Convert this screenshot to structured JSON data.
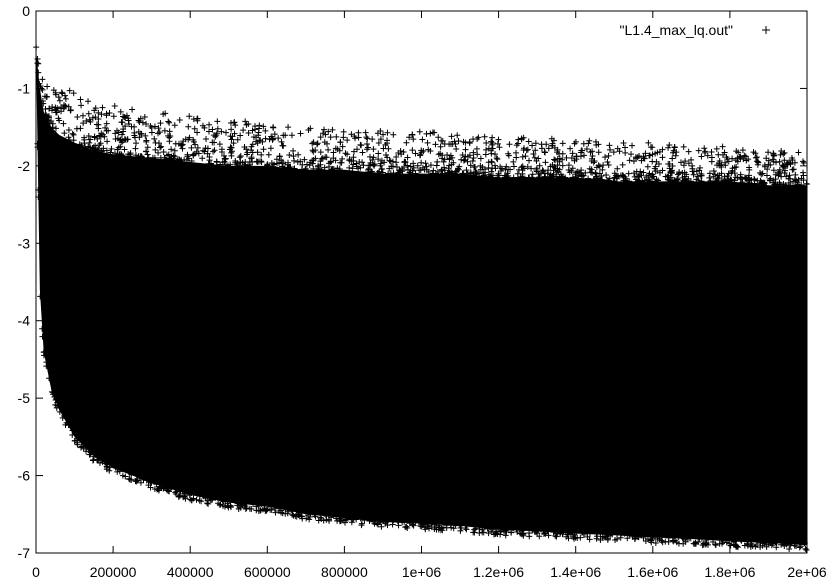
{
  "chart_data": {
    "type": "scatter",
    "title": "",
    "xlabel": "",
    "ylabel": "",
    "xlim": [
      0,
      2000000
    ],
    "ylim": [
      -7,
      0
    ],
    "x_ticks": [
      0,
      200000,
      400000,
      600000,
      800000,
      1000000,
      1200000,
      1400000,
      1600000,
      1800000,
      2000000
    ],
    "x_tick_labels": [
      "0",
      "200000",
      "400000",
      "600000",
      "800000",
      "1e+06",
      "1.2e+06",
      "1.4e+06",
      "1.6e+06",
      "1.8e+06",
      "2e+06"
    ],
    "y_ticks": [
      0,
      -1,
      -2,
      -3,
      -4,
      -5,
      -6,
      -7
    ],
    "y_tick_labels": [
      "0",
      "-1",
      "-2",
      "-3",
      "-4",
      "-5",
      "-6",
      "-7"
    ],
    "grid": false,
    "legend_position": "top-right",
    "series": [
      {
        "name": "\"L1.4_max_lq.out\"",
        "marker": "+",
        "color": "#000000",
        "x": [
          0,
          10000,
          20000,
          40000,
          60000,
          100000,
          150000,
          200000,
          300000,
          400000,
          500000,
          600000,
          700000,
          800000,
          900000,
          1000000,
          1100000,
          1200000,
          1300000,
          1400000,
          1500000,
          1600000,
          1700000,
          1800000,
          1900000,
          2000000
        ],
        "upper_envelope": [
          -0.3,
          -0.55,
          -0.7,
          -0.85,
          -0.95,
          -1.05,
          -1.15,
          -1.2,
          -1.3,
          -1.35,
          -1.4,
          -1.45,
          -1.5,
          -1.5,
          -1.55,
          -1.55,
          -1.6,
          -1.6,
          -1.65,
          -1.65,
          -1.7,
          -1.7,
          -1.75,
          -1.75,
          -1.8,
          -1.8
        ],
        "dense_upper": [
          -0.5,
          -1.0,
          -1.3,
          -1.5,
          -1.6,
          -1.7,
          -1.8,
          -1.85,
          -1.9,
          -1.95,
          -2.0,
          -2.0,
          -2.05,
          -2.05,
          -2.1,
          -2.1,
          -2.1,
          -2.15,
          -2.15,
          -2.15,
          -2.2,
          -2.2,
          -2.2,
          -2.2,
          -2.25,
          -2.25
        ],
        "lower_envelope": [
          -0.5,
          -3.6,
          -4.4,
          -4.9,
          -5.15,
          -5.5,
          -5.75,
          -5.9,
          -6.1,
          -6.25,
          -6.35,
          -6.4,
          -6.5,
          -6.55,
          -6.6,
          -6.62,
          -6.65,
          -6.7,
          -6.72,
          -6.75,
          -6.77,
          -6.8,
          -6.82,
          -6.85,
          -6.87,
          -6.9
        ]
      }
    ]
  }
}
